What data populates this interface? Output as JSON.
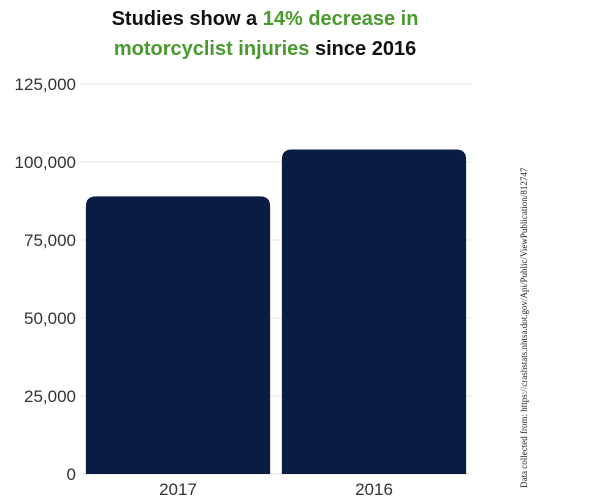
{
  "chart_data": {
    "type": "bar",
    "title_parts": [
      {
        "text": "Studies show a ",
        "highlight": false
      },
      {
        "text": "14% decrease in",
        "highlight": true
      },
      {
        "text": "motorcyclist injuries",
        "highlight": true
      },
      {
        "text": " since 2016",
        "highlight": false
      }
    ],
    "categories": [
      "2017",
      "2016"
    ],
    "values": [
      89000,
      104000
    ],
    "ylim": [
      0,
      125000
    ],
    "yticks": [
      "0",
      "25,000",
      "50,000",
      "75,000",
      "100,000",
      "125,000"
    ],
    "ytick_values": [
      0,
      25000,
      50000,
      75000,
      100000,
      125000
    ],
    "grid": true,
    "source": "Data collected from: https://crashstats.nhtsa.dot.gov/Api/Public/ViewPublication/812747",
    "colors": {
      "bar": "#0a1c44",
      "title_highlight": "#4a9a2e",
      "grid": "#e4e4e4"
    }
  }
}
